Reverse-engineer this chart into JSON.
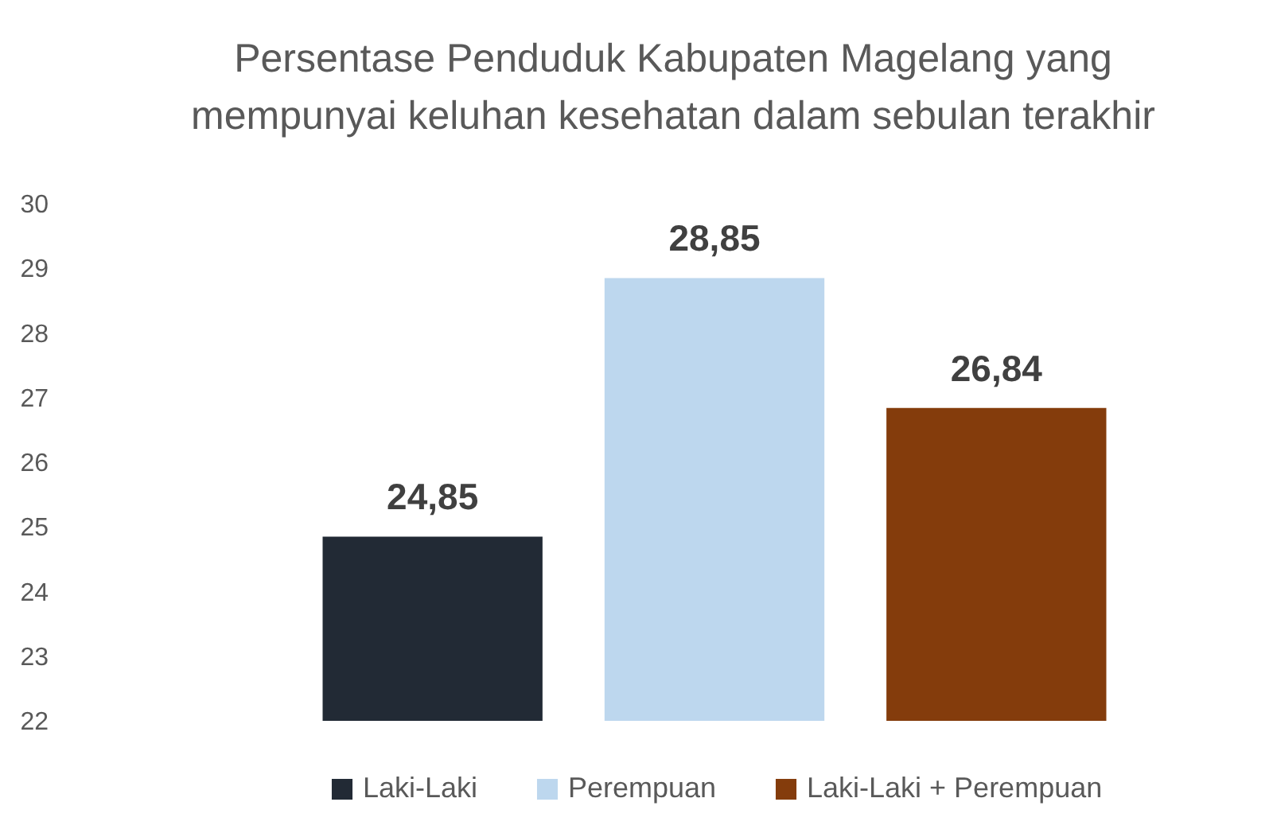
{
  "chart_data": {
    "type": "bar",
    "title": "Persentase Penduduk Kabupaten Magelang yang mempunyai keluhan kesehatan dalam sebulan terakhir",
    "categories": [
      null
    ],
    "series": [
      {
        "name": "Laki-Laki",
        "color": "#222a35",
        "values": [
          24.85
        ],
        "value_labels": [
          "24,85"
        ]
      },
      {
        "name": "Perempuan",
        "color": "#bdd7ee",
        "values": [
          28.85
        ],
        "value_labels": [
          "28,85"
        ]
      },
      {
        "name": "Laki-Laki + Perempuan",
        "color": "#843c0c",
        "values": [
          26.84
        ],
        "value_labels": [
          "26,84"
        ]
      }
    ],
    "ylim": [
      22,
      30
    ],
    "yticks": [
      22,
      23,
      24,
      25,
      26,
      27,
      28,
      29,
      30
    ],
    "legend": "bottom"
  }
}
